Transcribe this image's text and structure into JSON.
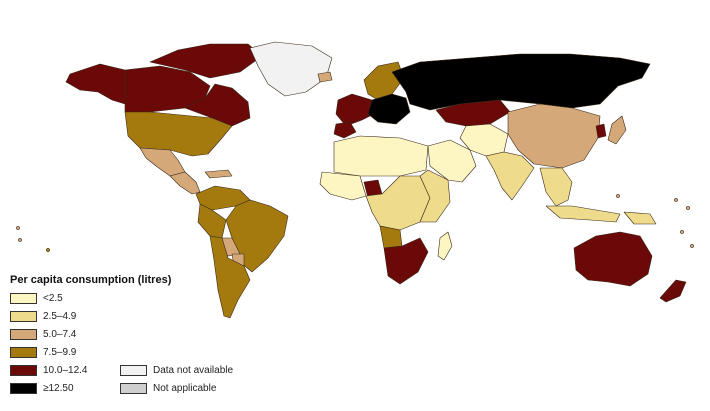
{
  "legend": {
    "title": "Per capita consumption (litres)",
    "classes": [
      {
        "label": "<2.5",
        "color": "#fdf6c3"
      },
      {
        "label": "2.5–4.9",
        "color": "#eedb8b"
      },
      {
        "label": "5.0–7.4",
        "color": "#d4a878"
      },
      {
        "label": "7.5–9.9",
        "color": "#a47a0f"
      },
      {
        "label": "10.0–12.4",
        "color": "#6b0808"
      },
      {
        "label": "≥12.50",
        "color": "#000000"
      }
    ],
    "special": [
      {
        "label": "Data not available",
        "color": "#f2f2f2"
      },
      {
        "label": "Not applicable",
        "color": "#cfcfcf"
      }
    ]
  },
  "regions": [
    {
      "name": "alaska",
      "class": 4
    },
    {
      "name": "canada-west",
      "class": 4
    },
    {
      "name": "canada-east",
      "class": 4
    },
    {
      "name": "arctic-islands",
      "class": 4
    },
    {
      "name": "greenland",
      "class": "na"
    },
    {
      "name": "united-states",
      "class": 3
    },
    {
      "name": "mexico",
      "class": 2
    },
    {
      "name": "central-america",
      "class": 2
    },
    {
      "name": "caribbean",
      "class": 2
    },
    {
      "name": "colombia-venezuela",
      "class": 3
    },
    {
      "name": "brazil",
      "class": 3
    },
    {
      "name": "peru",
      "class": 3
    },
    {
      "name": "bolivia",
      "class": 2
    },
    {
      "name": "argentina-chile",
      "class": 3
    },
    {
      "name": "paraguay",
      "class": 2
    },
    {
      "name": "iceland",
      "class": 2
    },
    {
      "name": "scandinavia",
      "class": 3
    },
    {
      "name": "western-europe",
      "class": 4
    },
    {
      "name": "iberia",
      "class": 4
    },
    {
      "name": "central-europe",
      "class": 5
    },
    {
      "name": "russia",
      "class": 5
    },
    {
      "name": "kazakhstan",
      "class": 4
    },
    {
      "name": "north-africa",
      "class": 0
    },
    {
      "name": "west-africa",
      "class": 0
    },
    {
      "name": "nigeria",
      "class": 4
    },
    {
      "name": "central-africa",
      "class": 1
    },
    {
      "name": "east-africa",
      "class": 1
    },
    {
      "name": "southern-africa",
      "class": 4
    },
    {
      "name": "angola",
      "class": 3
    },
    {
      "name": "madagascar",
      "class": 0
    },
    {
      "name": "middle-east",
      "class": 0
    },
    {
      "name": "iran-central-asia",
      "class": 0
    },
    {
      "name": "south-asia",
      "class": 1
    },
    {
      "name": "china-mongolia",
      "class": 2
    },
    {
      "name": "korea",
      "class": 4
    },
    {
      "name": "japan",
      "class": 2
    },
    {
      "name": "southeast-asia",
      "class": 1
    },
    {
      "name": "indonesia",
      "class": 1
    },
    {
      "name": "papua",
      "class": 1
    },
    {
      "name": "australia",
      "class": 4
    },
    {
      "name": "new-zealand",
      "class": 4
    }
  ]
}
